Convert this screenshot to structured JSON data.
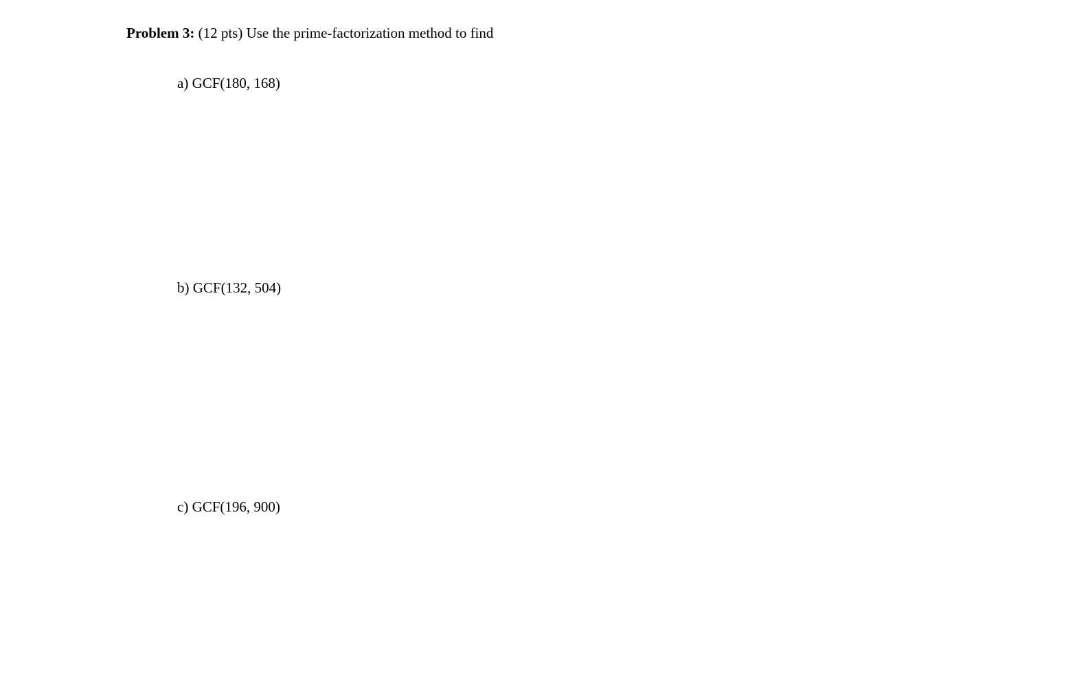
{
  "problem": {
    "label": "Problem 3:",
    "points": "(12 pts)",
    "instruction": "Use the prime-factorization method to find"
  },
  "subparts": {
    "a": {
      "label": "a)",
      "text": "GCF(180, 168)"
    },
    "b": {
      "label": "b)",
      "text": "GCF(132, 504)"
    },
    "c": {
      "label": "c)",
      "text": "GCF(196, 900)"
    }
  }
}
